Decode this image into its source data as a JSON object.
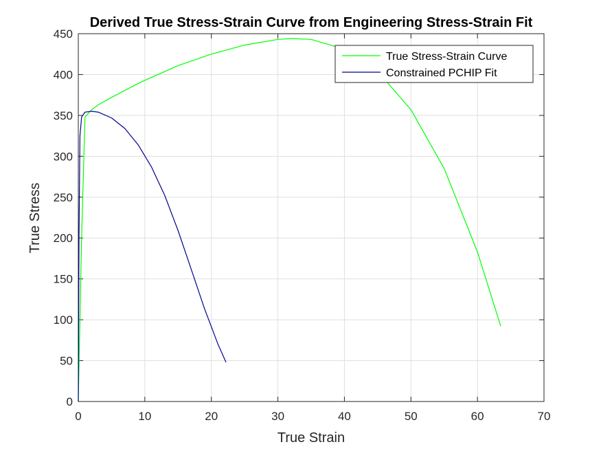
{
  "chart_data": {
    "type": "line",
    "title": "Derived True Stress-Strain Curve from Engineering Stress-Strain Fit",
    "xlabel": "True Strain",
    "ylabel": "True Stress",
    "xlim": [
      0,
      70
    ],
    "ylim": [
      0,
      450
    ],
    "xticks": [
      0,
      10,
      20,
      30,
      40,
      50,
      60,
      70
    ],
    "yticks": [
      0,
      50,
      100,
      150,
      200,
      250,
      300,
      350,
      400,
      450
    ],
    "grid": true,
    "legend_position": "top-right",
    "series": [
      {
        "name": "True Stress-Strain Curve",
        "color": "#00ff00",
        "x": [
          0,
          0.5,
          1.0,
          2,
          3,
          5,
          8,
          10,
          15,
          20,
          25,
          30,
          32,
          35,
          40,
          45,
          50,
          55,
          60,
          63.5
        ],
        "y": [
          0,
          200,
          348,
          357,
          363,
          372,
          385,
          393,
          411,
          425,
          436,
          443,
          444,
          443,
          431,
          404,
          357,
          285,
          183,
          92
        ]
      },
      {
        "name": "Constrained PCHIP Fit",
        "color": "#00008b",
        "x": [
          0,
          0.1,
          0.25,
          0.5,
          1,
          2,
          3,
          5,
          7,
          9,
          11,
          13,
          15,
          17,
          19,
          21,
          22.2
        ],
        "y": [
          0,
          200,
          325,
          348,
          354,
          355,
          354,
          347,
          334,
          314,
          287,
          252,
          209,
          161,
          113,
          70,
          48
        ]
      }
    ]
  }
}
